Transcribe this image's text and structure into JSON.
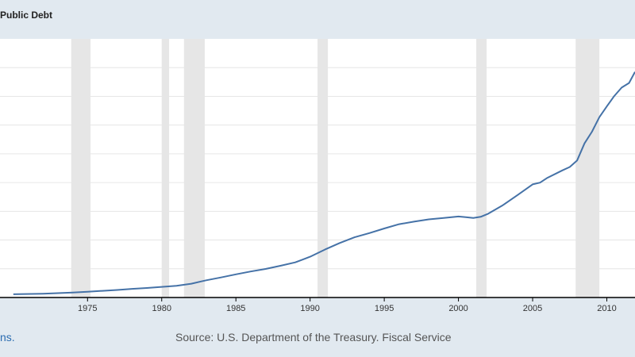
{
  "header": {
    "title": "Public Debt"
  },
  "footer": {
    "link_fragment": "ns.",
    "source": "Source: U.S. Department of the Treasury. Fiscal Service"
  },
  "colors": {
    "page_background": "#e1e9f0",
    "plot_background": "#ffffff",
    "recession_band": "#e6e6e6",
    "series_line": "#4572a7",
    "grid": "#e6e6e6",
    "axis": "#000000",
    "link": "#2b6cb0"
  },
  "chart_data": {
    "type": "line",
    "title": "Public Debt",
    "xlabel": "",
    "ylabel": "",
    "x_ticks": [
      1975,
      1980,
      1985,
      1990,
      1995,
      2000,
      2005,
      2010
    ],
    "xlim": [
      1969.1,
      2011.9
    ],
    "y_ticks_visible": false,
    "grid": true,
    "recessions": [
      [
        1973.9,
        1975.2
      ],
      [
        1980.0,
        1980.5
      ],
      [
        1981.5,
        1982.9
      ],
      [
        1990.5,
        1991.2
      ],
      [
        2001.2,
        2001.9
      ],
      [
        2007.9,
        2009.5
      ]
    ],
    "series": [
      {
        "x": [
          1970.0,
          1972.0,
          1974.0,
          1975.0,
          1976.0,
          1977.0,
          1978.0,
          1979.0,
          1980.0,
          1981.0,
          1982.0,
          1983.0,
          1984.0,
          1985.0,
          1986.0,
          1987.0,
          1988.0,
          1989.0,
          1990.0,
          1991.0,
          1992.0,
          1993.0,
          1994.0,
          1995.0,
          1996.0,
          1997.0,
          1998.0,
          1999.0,
          2000.0,
          2000.5,
          2001.0,
          2001.5,
          2002.0,
          2003.0,
          2004.0,
          2005.0,
          2005.5,
          2006.0,
          2007.0,
          2007.5,
          2008.0,
          2008.5,
          2009.0,
          2009.5,
          2010.0,
          2010.5,
          2011.0,
          2011.5,
          2011.9
        ],
        "values": [
          0.3,
          0.5,
          0.9,
          1.2,
          1.5,
          1.8,
          2.2,
          2.5,
          2.9,
          3.3,
          4.0,
          5.2,
          6.2,
          7.3,
          8.3,
          9.2,
          10.3,
          11.5,
          13.5,
          16.0,
          18.3,
          20.3,
          21.8,
          23.4,
          24.9,
          25.8,
          26.6,
          27.1,
          27.6,
          27.4,
          27.1,
          27.5,
          28.6,
          31.6,
          35.2,
          38.9,
          39.5,
          41.2,
          43.8,
          45.0,
          47.3,
          53.3,
          57.4,
          62.5,
          66.3,
          69.9,
          72.9,
          74.5,
          78.4
        ]
      }
    ]
  }
}
